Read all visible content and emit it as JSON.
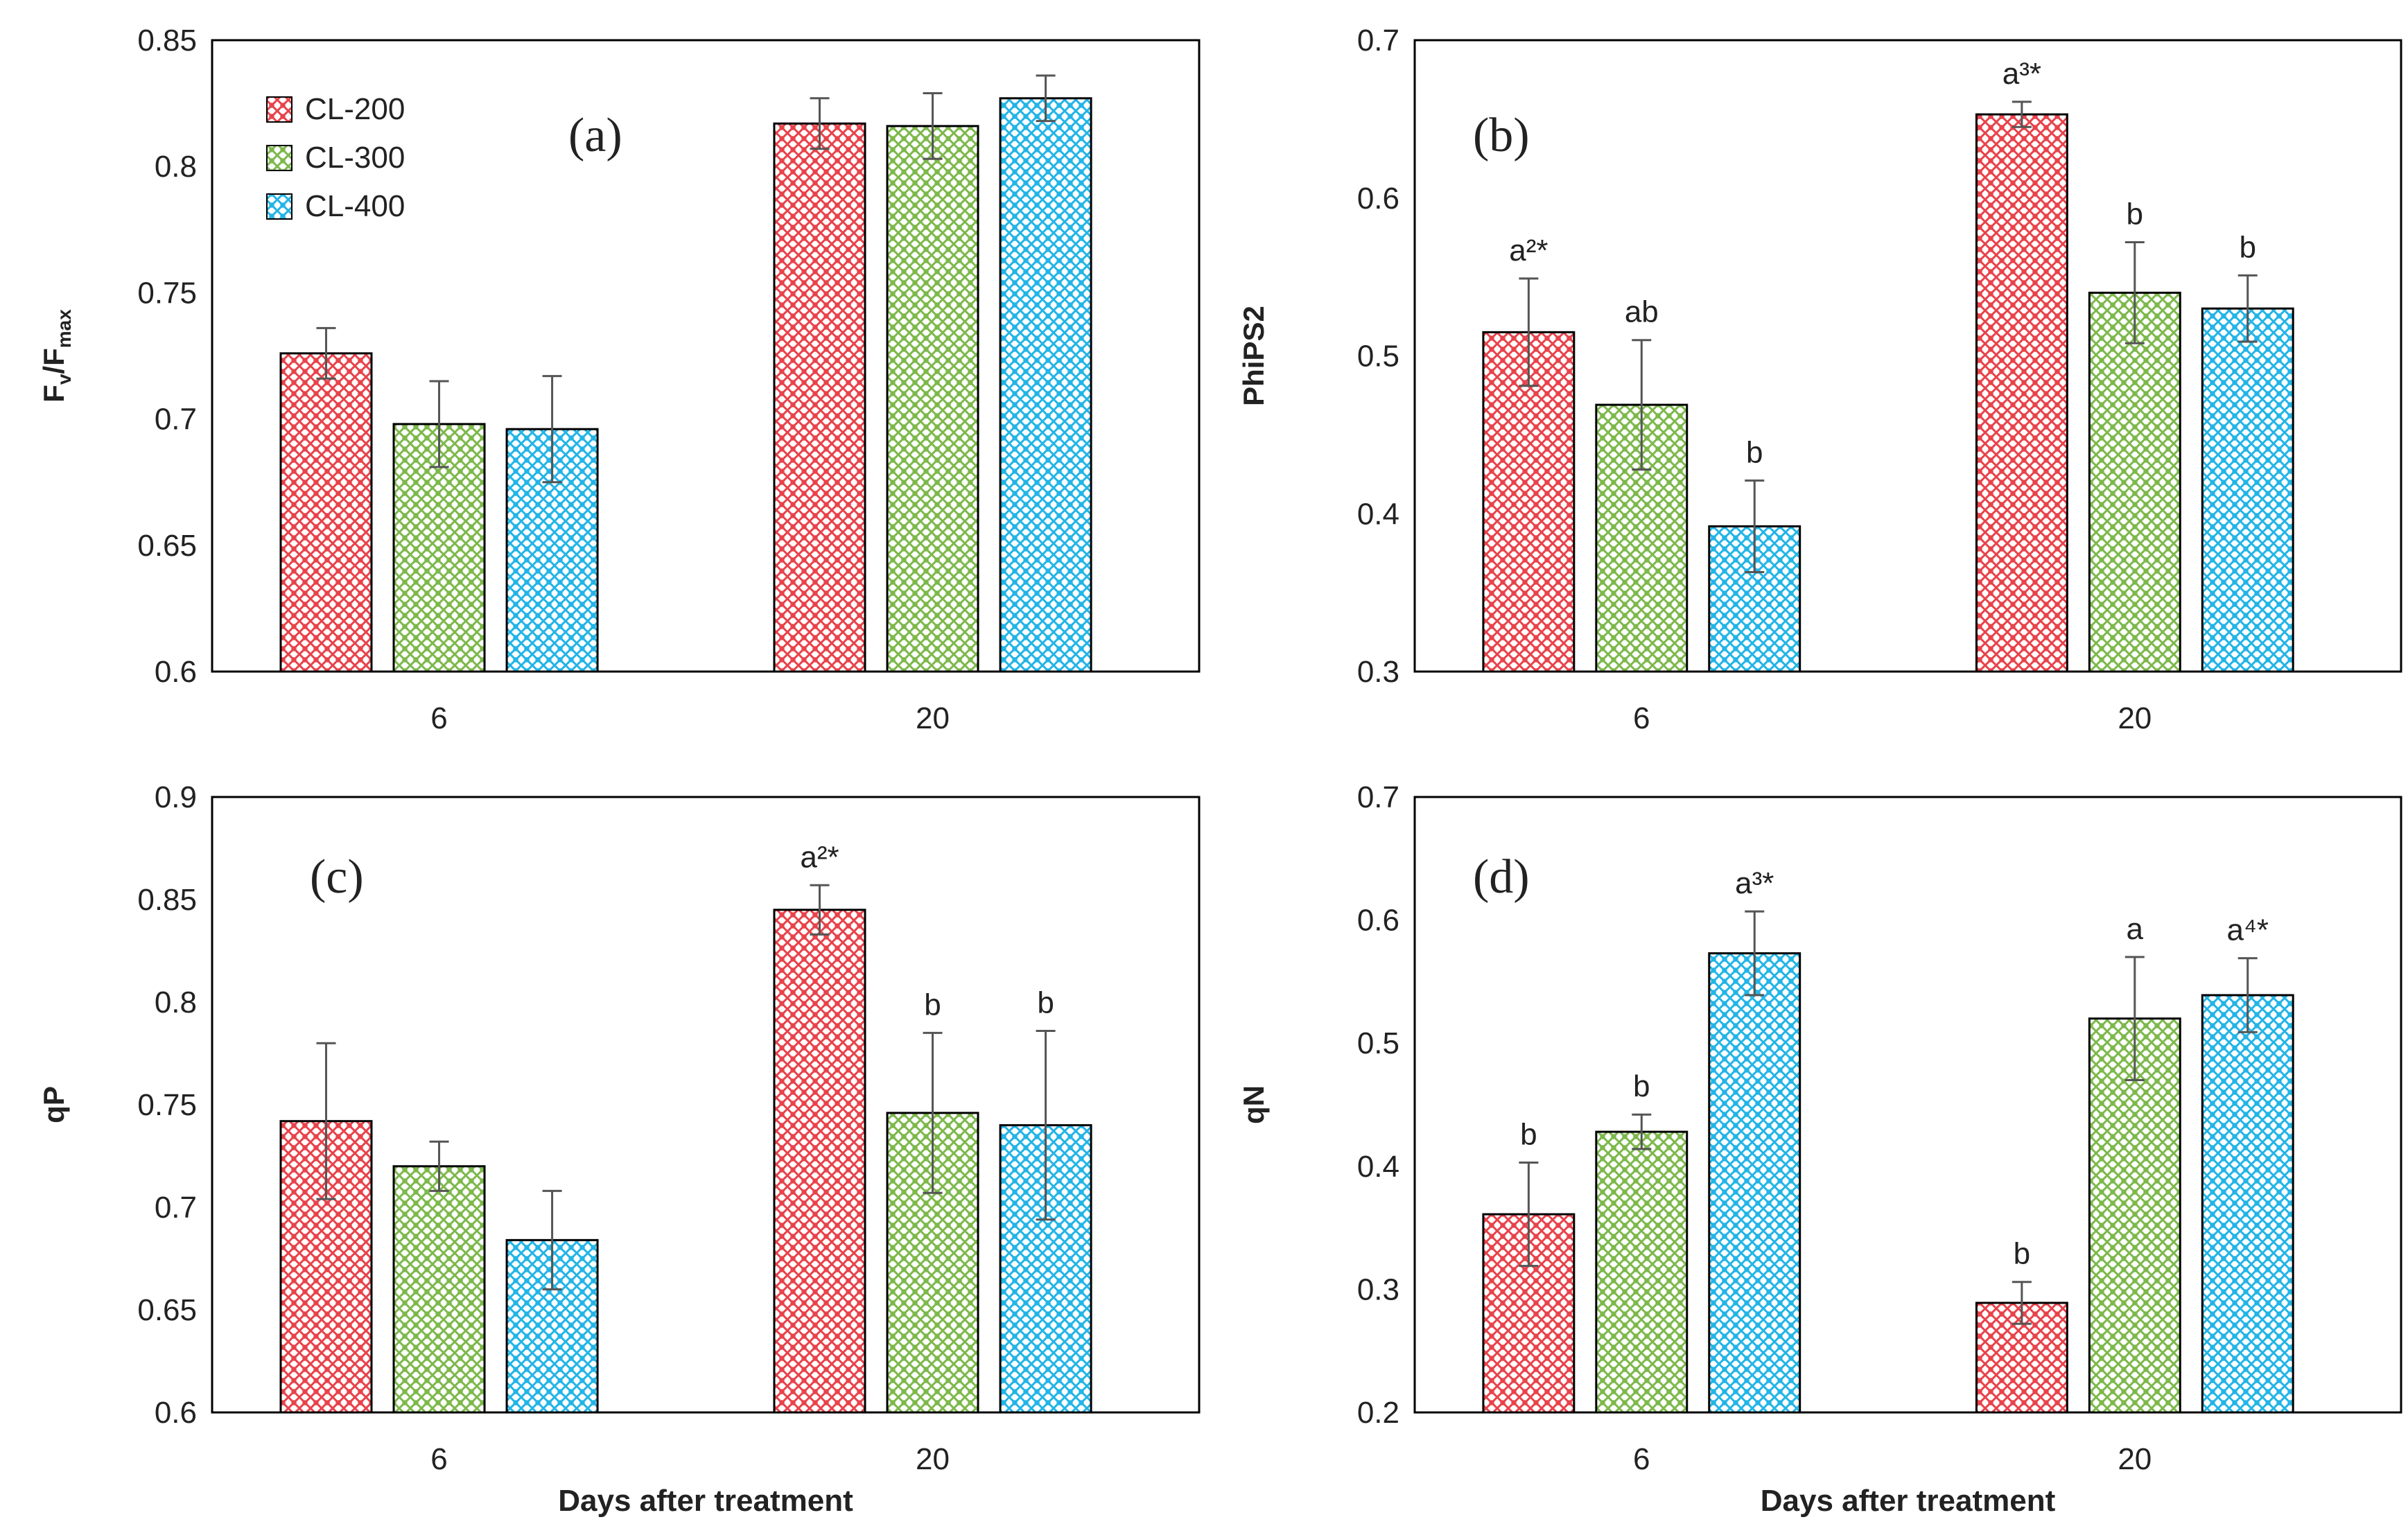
{
  "legend": {
    "items": [
      "CL-200",
      "CL-300",
      "CL-400"
    ]
  },
  "series_colors": {
    "CL-200": "#e8424a",
    "CL-300": "#7cb84a",
    "CL-400": "#22b4e6"
  },
  "chart_data": [
    {
      "type": "bar",
      "panel": "(a)",
      "ylabel": "Fv/Fmax",
      "ylabel_parts": [
        "F",
        "v",
        "/F",
        "max"
      ],
      "xlabel": "",
      "categories": [
        "6",
        "20"
      ],
      "ylim": [
        0.6,
        0.85
      ],
      "yticks": [
        "0.6",
        "0.65",
        "0.7",
        "0.75",
        "0.8",
        "0.85"
      ],
      "series": [
        {
          "name": "CL-200",
          "values": [
            0.726,
            0.817
          ],
          "errors": [
            0.01,
            0.01
          ]
        },
        {
          "name": "CL-300",
          "values": [
            0.698,
            0.816
          ],
          "errors": [
            0.017,
            0.013
          ]
        },
        {
          "name": "CL-400",
          "values": [
            0.696,
            0.827
          ],
          "errors": [
            0.021,
            0.009
          ]
        }
      ],
      "annotations": [
        [
          "",
          ""
        ],
        [
          "",
          ""
        ],
        [
          "",
          ""
        ]
      ]
    },
    {
      "type": "bar",
      "panel": "(b)",
      "ylabel": "PhiPS2",
      "xlabel": "",
      "categories": [
        "6",
        "20"
      ],
      "ylim": [
        0.3,
        0.7
      ],
      "yticks": [
        "0.3",
        "0.4",
        "0.5",
        "0.6",
        "0.7"
      ],
      "series": [
        {
          "name": "CL-200",
          "values": [
            0.515,
            0.653
          ],
          "errors": [
            0.034,
            0.008
          ]
        },
        {
          "name": "CL-300",
          "values": [
            0.469,
            0.54
          ],
          "errors": [
            0.041,
            0.032
          ]
        },
        {
          "name": "CL-400",
          "values": [
            0.392,
            0.53
          ],
          "errors": [
            0.029,
            0.021
          ]
        }
      ],
      "annotations": [
        [
          "a²*",
          "a³*"
        ],
        [
          "ab",
          "b"
        ],
        [
          "b",
          "b"
        ]
      ]
    },
    {
      "type": "bar",
      "panel": "(c)",
      "ylabel": "qP",
      "xlabel": "Days after treatment",
      "categories": [
        "6",
        "20"
      ],
      "ylim": [
        0.6,
        0.9
      ],
      "yticks": [
        "0.6",
        "0.65",
        "0.7",
        "0.75",
        "0.8",
        "0.85",
        "0.9"
      ],
      "series": [
        {
          "name": "CL-200",
          "values": [
            0.742,
            0.845
          ],
          "errors": [
            0.038,
            0.012
          ]
        },
        {
          "name": "CL-300",
          "values": [
            0.72,
            0.746
          ],
          "errors": [
            0.012,
            0.039
          ]
        },
        {
          "name": "CL-400",
          "values": [
            0.684,
            0.74
          ],
          "errors": [
            0.024,
            0.046
          ]
        }
      ],
      "annotations": [
        [
          "",
          "a²*"
        ],
        [
          "",
          "b"
        ],
        [
          "",
          "b"
        ]
      ]
    },
    {
      "type": "bar",
      "panel": "(d)",
      "ylabel": "qN",
      "xlabel": "Days after treatment",
      "categories": [
        "6",
        "20"
      ],
      "ylim": [
        0.2,
        0.7
      ],
      "yticks": [
        "0.2",
        "0.3",
        "0.4",
        "0.5",
        "0.6",
        "0.7"
      ],
      "series": [
        {
          "name": "CL-200",
          "values": [
            0.361,
            0.289
          ],
          "errors": [
            0.042,
            0.017
          ]
        },
        {
          "name": "CL-300",
          "values": [
            0.428,
            0.52
          ],
          "errors": [
            0.014,
            0.05
          ]
        },
        {
          "name": "CL-400",
          "values": [
            0.573,
            0.539
          ],
          "errors": [
            0.034,
            0.03
          ]
        }
      ],
      "annotations": [
        [
          "b",
          "b"
        ],
        [
          "b",
          "a"
        ],
        [
          "a³*",
          "a⁴*"
        ]
      ]
    }
  ]
}
